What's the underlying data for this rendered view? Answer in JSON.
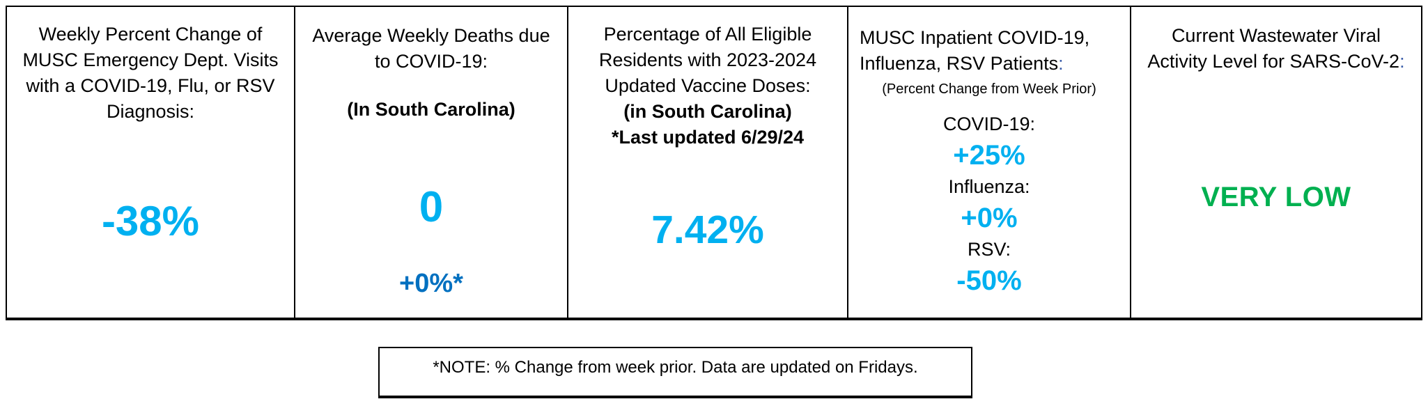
{
  "colors": {
    "value_light_blue": "#00b0f0",
    "value_dark_blue": "#0070c0",
    "status_green": "#00b050",
    "colon_blue": "#3a5da9",
    "text_black": "#000000",
    "border_black": "#000000"
  },
  "panels": [
    {
      "id": "ed-visits",
      "title": "Weekly Percent Change of\nMUSC Emergency Dept. Visits\nwith a COVID-19, Flu, or RSV\nDiagnosis:",
      "value": "-38%",
      "value_color": "#00b0f0"
    },
    {
      "id": "covid-deaths",
      "title": "Average Weekly Deaths due\nto COVID-19:",
      "subtitle": "(In South Carolina)",
      "value": "0",
      "value_color": "#00b0f0",
      "change": "+0%*",
      "change_color": "#0070c0"
    },
    {
      "id": "vaccine-doses",
      "title": "Percentage of All Eligible\nResidents with 2023-2024\nUpdated Vaccine Doses:",
      "subtitle": "(in South Carolina)",
      "updated_note": "*Last updated 6/29/24",
      "value": "7.42%",
      "value_color": "#00b0f0"
    },
    {
      "id": "inpatient",
      "title": "MUSC Inpatient COVID-19,\nInfluenza, RSV Patients",
      "title_colon": ":",
      "subtitle": "(Percent Change from Week Prior)",
      "items": [
        {
          "label": "COVID-19:",
          "value": "+25%"
        },
        {
          "label": "Influenza:",
          "value": "+0%"
        },
        {
          "label": "RSV:",
          "value": "-50%"
        }
      ],
      "value_color": "#00b0f0"
    },
    {
      "id": "wastewater",
      "title": "Current Wastewater Viral\nActivity Level for SARS-CoV-2",
      "title_colon": ":",
      "value": "VERY LOW",
      "value_color": "#00b050"
    }
  ],
  "footnote": "*NOTE: % Change from week prior.  Data are updated on Fridays."
}
